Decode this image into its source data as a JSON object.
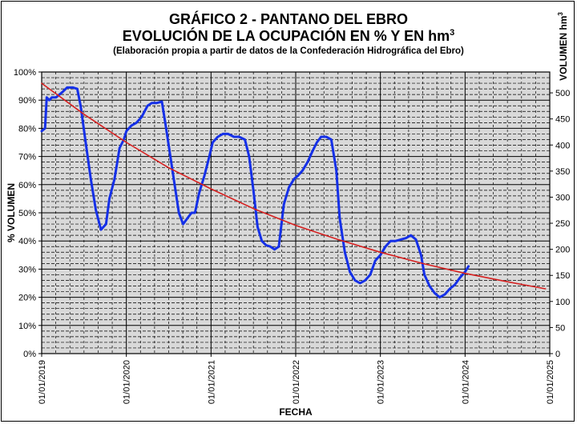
{
  "chart_data": {
    "type": "line",
    "title": "GRÁFICO 2 - PANTANO DEL EBRO",
    "subtitle_line": "EVOLUCIÓN DE LA OCUPACIÓN EN % Y EN hm",
    "subtitle_sup": "3",
    "note": "(Elaboración propia a partir de datos de la Confederación Hidrográfica del Ebro)",
    "xlabel": "FECHA",
    "ylabel_left": "% VOLUMEN",
    "ylabel_right_base": "VOLUMEN hm",
    "ylabel_right_sup": "3",
    "x_ticks": [
      "01/01/2019",
      "01/01/2020",
      "01/01/2021",
      "01/01/2022",
      "01/01/2023",
      "01/01/2024",
      "01/01/2025"
    ],
    "x_range": [
      2019.0,
      2025.0
    ],
    "y_left_ticks": [
      "0%",
      "10%",
      "20%",
      "30%",
      "40%",
      "50%",
      "60%",
      "70%",
      "80%",
      "90%",
      "100%"
    ],
    "y_left_range": [
      0,
      100
    ],
    "y_right_ticks": [
      "0",
      "50",
      "100",
      "150",
      "200",
      "250",
      "300",
      "350",
      "400",
      "450",
      "500"
    ],
    "y_right_range": [
      0,
      540
    ],
    "grid": true,
    "colors": {
      "volumen": "#1530e8",
      "tendencia": "#d62020",
      "grid_bg": "#d9d9d9"
    },
    "series": [
      {
        "key": "volumen",
        "x": [
          2019.0,
          2019.04,
          2019.06,
          2019.09,
          2019.12,
          2019.17,
          2019.25,
          2019.3,
          2019.37,
          2019.42,
          2019.46,
          2019.52,
          2019.58,
          2019.64,
          2019.7,
          2019.76,
          2019.8,
          2019.86,
          2019.92,
          2019.97,
          2020.0,
          2020.06,
          2020.12,
          2020.18,
          2020.25,
          2020.3,
          2020.36,
          2020.42,
          2020.47,
          2020.52,
          2020.57,
          2020.62,
          2020.67,
          2020.72,
          2020.77,
          2020.81,
          2020.86,
          2020.92,
          2020.98,
          2021.02,
          2021.08,
          2021.14,
          2021.2,
          2021.27,
          2021.33,
          2021.4,
          2021.45,
          2021.5,
          2021.55,
          2021.6,
          2021.65,
          2021.7,
          2021.75,
          2021.8,
          2021.86,
          2021.92,
          2021.98,
          2022.02,
          2022.08,
          2022.14,
          2022.2,
          2022.25,
          2022.3,
          2022.36,
          2022.42,
          2022.48,
          2022.52,
          2022.58,
          2022.64,
          2022.7,
          2022.76,
          2022.82,
          2022.88,
          2022.94,
          2023.0,
          2023.06,
          2023.12,
          2023.18,
          2023.24,
          2023.3,
          2023.36,
          2023.42,
          2023.48,
          2023.52,
          2023.58,
          2023.64,
          2023.7,
          2023.76,
          2023.82,
          2023.88,
          2023.94,
          2024.0,
          2024.04
        ],
        "values": [
          79,
          80,
          91,
          90,
          91,
          91,
          93,
          94.5,
          94.5,
          94,
          88,
          75,
          62,
          51,
          44,
          46,
          55,
          62,
          73,
          76,
          79,
          81,
          82,
          84,
          88,
          89,
          89,
          89.5,
          80,
          70,
          60,
          50,
          46,
          48,
          50,
          50,
          57,
          63,
          70,
          75,
          77,
          78,
          78,
          77,
          77,
          76,
          70,
          58,
          45,
          40,
          38.5,
          38,
          37,
          38,
          53,
          59,
          62,
          63,
          65,
          68,
          72,
          75,
          77,
          77,
          76,
          65,
          48,
          36,
          29,
          26,
          25,
          26,
          28,
          33,
          35,
          38,
          40,
          40,
          40.5,
          41,
          42,
          40.5,
          35,
          28,
          24,
          21.5,
          20,
          21,
          23,
          24.5,
          27,
          29,
          31
        ]
      },
      {
        "key": "tendencia",
        "x": [
          2019.0,
          2019.5,
          2020.0,
          2020.5,
          2021.0,
          2021.5,
          2022.0,
          2022.5,
          2023.0,
          2023.5,
          2024.0,
          2024.5,
          2024.95
        ],
        "values": [
          96,
          85,
          75,
          66,
          58.5,
          51.5,
          45.5,
          40.5,
          36,
          32,
          28.5,
          25.5,
          23
        ]
      }
    ]
  }
}
